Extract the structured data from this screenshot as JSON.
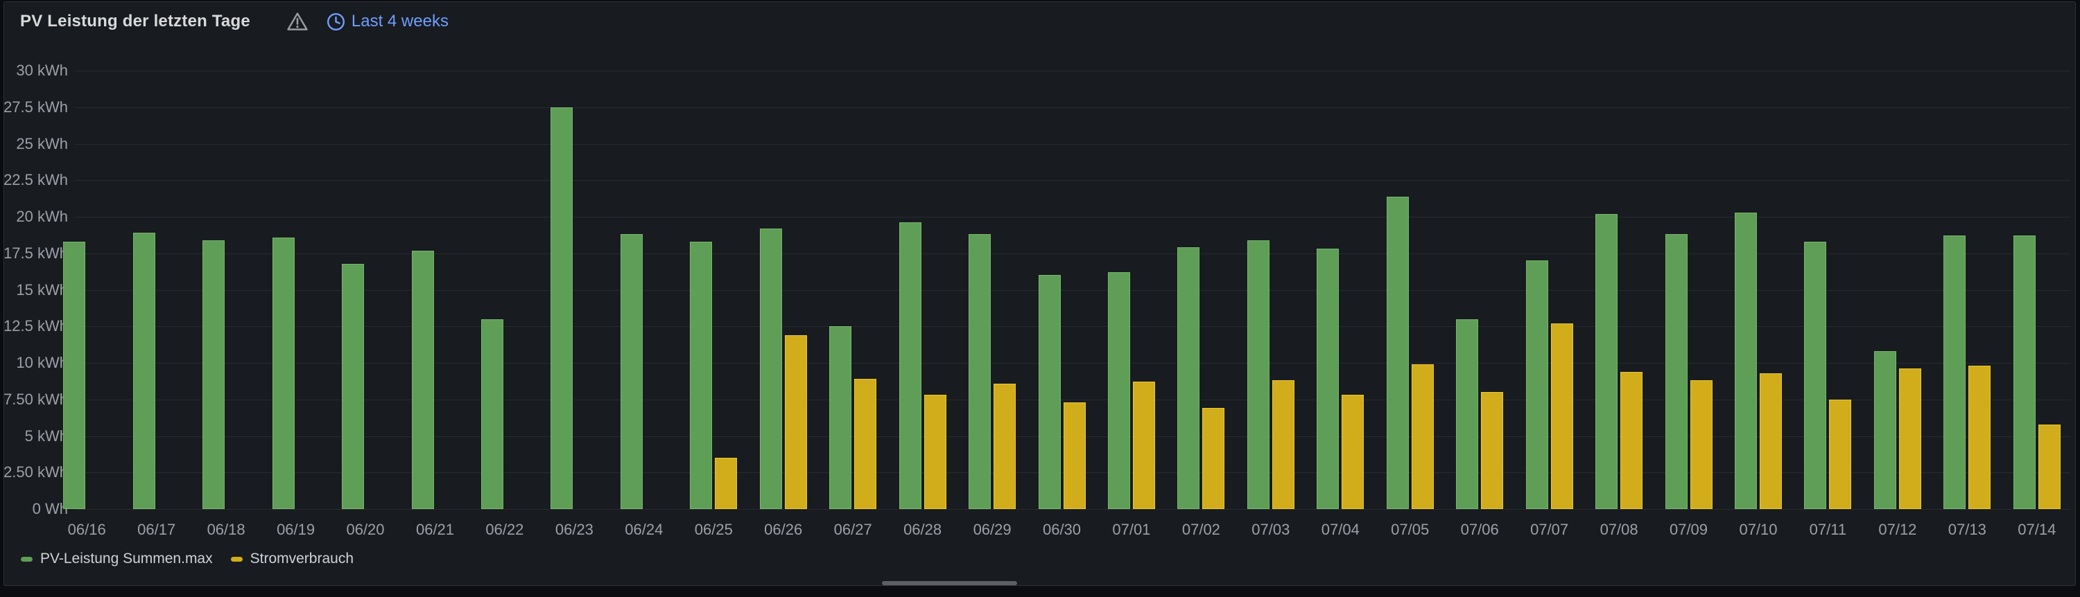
{
  "panel": {
    "title": "PV Leistung der letzten Tage",
    "time_range_label": "Last 4 weeks",
    "warning_icon": "warning-triangle",
    "clock_icon": "clock"
  },
  "colors": {
    "pv_green": "#5e9e56",
    "consumption_yellow": "#d1ac1b",
    "time_link_blue": "#6e9fff",
    "panel_background": "#181b1f",
    "axis_text": "#9da0a7"
  },
  "legend": {
    "items": [
      {
        "label": "PV-Leistung Summen.max",
        "color": "#5e9e56"
      },
      {
        "label": "Stromverbrauch",
        "color": "#d1ac1b"
      }
    ]
  },
  "chart_data": {
    "type": "bar",
    "title": "PV Leistung der letzten Tage",
    "unit": "kWh",
    "ylim": [
      0,
      30
    ],
    "grid": true,
    "legend_position": "bottom-left",
    "y_ticks": [
      {
        "value": 0,
        "label": "0 Wh"
      },
      {
        "value": 2.5,
        "label": "2.50 kWh"
      },
      {
        "value": 5,
        "label": "5 kWh"
      },
      {
        "value": 7.5,
        "label": "7.50 kWh"
      },
      {
        "value": 10,
        "label": "10 kWh"
      },
      {
        "value": 12.5,
        "label": "12.5 kWh"
      },
      {
        "value": 15,
        "label": "15 kWh"
      },
      {
        "value": 17.5,
        "label": "17.5 kWh"
      },
      {
        "value": 20,
        "label": "20 kWh"
      },
      {
        "value": 22.5,
        "label": "22.5 kWh"
      },
      {
        "value": 25,
        "label": "25 kWh"
      },
      {
        "value": 27.5,
        "label": "27.5 kWh"
      },
      {
        "value": 30,
        "label": "30 kWh"
      }
    ],
    "categories": [
      "06/16",
      "06/17",
      "06/18",
      "06/19",
      "06/20",
      "06/21",
      "06/22",
      "06/23",
      "06/24",
      "06/25",
      "06/26",
      "06/27",
      "06/28",
      "06/29",
      "06/30",
      "07/01",
      "07/02",
      "07/03",
      "07/04",
      "07/05",
      "07/06",
      "07/07",
      "07/08",
      "07/09",
      "07/10",
      "07/11",
      "07/12",
      "07/13",
      "07/14"
    ],
    "series": [
      {
        "name": "PV-Leistung Summen.max",
        "color": "#5e9e56",
        "values": [
          18.3,
          18.9,
          18.4,
          18.6,
          16.8,
          17.7,
          13.0,
          27.5,
          18.8,
          18.3,
          19.2,
          12.5,
          19.6,
          18.8,
          16.0,
          16.2,
          17.9,
          18.4,
          17.8,
          21.4,
          13.0,
          17.0,
          20.2,
          18.8,
          20.3,
          18.3,
          10.8,
          18.7,
          18.7
        ]
      },
      {
        "name": "Stromverbrauch",
        "color": "#d1ac1b",
        "values": [
          null,
          null,
          null,
          null,
          null,
          null,
          null,
          null,
          null,
          3.5,
          11.9,
          8.9,
          7.8,
          8.6,
          7.3,
          8.7,
          6.9,
          8.8,
          7.8,
          9.9,
          8.0,
          12.7,
          9.4,
          8.8,
          9.3,
          7.5,
          9.6,
          9.8,
          5.8
        ]
      }
    ]
  }
}
